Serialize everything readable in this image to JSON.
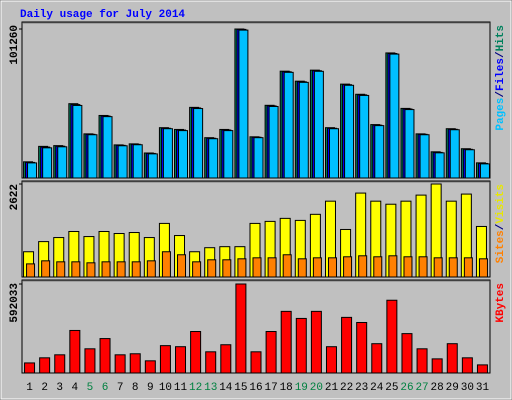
{
  "chart_data": [
    {
      "type": "bar",
      "title": "Daily usage for July 2014",
      "legend_separator": "/",
      "ylim": [
        0,
        101260
      ],
      "yticks": [
        101260
      ],
      "series": [
        {
          "name": "Hits",
          "color": "#00805c",
          "values": [
            11000,
            21500,
            22000,
            50500,
            30000,
            42500,
            22500,
            23200,
            17000,
            34200,
            33000,
            48000,
            27400,
            33000,
            101260,
            28000,
            49400,
            72600,
            65800,
            73300,
            34200,
            63800,
            56900,
            36300,
            85000,
            47300,
            30000,
            17800,
            33500,
            19900,
            10300
          ]
        },
        {
          "name": "Files",
          "color": "#0000ff",
          "values": [
            10600,
            21000,
            21600,
            49900,
            29700,
            42100,
            22200,
            22900,
            16700,
            33800,
            32600,
            47600,
            27000,
            32600,
            101000,
            27700,
            49000,
            72200,
            65400,
            72900,
            33800,
            63400,
            56500,
            35900,
            84600,
            46900,
            29700,
            17400,
            33100,
            19500,
            9900
          ]
        },
        {
          "name": "Pages",
          "color": "#00c0ff",
          "values": [
            10260,
            20500,
            21200,
            49300,
            29400,
            41700,
            21900,
            22600,
            16400,
            33500,
            32200,
            47200,
            26700,
            32200,
            100500,
            27400,
            48600,
            71800,
            65000,
            72500,
            33500,
            63000,
            56100,
            35600,
            84200,
            46500,
            29400,
            17100,
            32800,
            19200,
            9600
          ]
        }
      ]
    },
    {
      "type": "bar",
      "legend_separator": "/",
      "ylim": [
        0,
        2622
      ],
      "yticks": [
        2622
      ],
      "series": [
        {
          "name": "Visits",
          "color": "#ffff00",
          "values": [
            712,
            998,
            1112,
            1283,
            1140,
            1283,
            1226,
            1254,
            1112,
            1511,
            1169,
            712,
            826,
            855,
            855,
            1511,
            1568,
            1653,
            1596,
            1767,
            2138,
            1340,
            2366,
            2138,
            2052,
            2138,
            2309,
            2622,
            2138,
            2338,
            1425
          ]
        },
        {
          "name": "Sites",
          "color": "#ff8000",
          "values": [
            370,
            456,
            428,
            428,
            400,
            428,
            428,
            428,
            456,
            712,
            627,
            428,
            485,
            485,
            513,
            541,
            541,
            627,
            513,
            541,
            541,
            570,
            598,
            570,
            598,
            570,
            570,
            541,
            541,
            541,
            513
          ]
        }
      ]
    },
    {
      "type": "bar",
      "ylim": [
        0,
        592033
      ],
      "yticks": [
        592033
      ],
      "categories": [
        "1",
        "2",
        "3",
        "4",
        "5",
        "6",
        "7",
        "8",
        "9",
        "10",
        "11",
        "12",
        "13",
        "14",
        "15",
        "16",
        "17",
        "18",
        "19",
        "20",
        "21",
        "22",
        "23",
        "24",
        "25",
        "26",
        "27",
        "28",
        "29",
        "30",
        "31"
      ],
      "category_colors": [
        "#000000",
        "#000000",
        "#000000",
        "#000000",
        "#008040",
        "#008040",
        "#000000",
        "#000000",
        "#000000",
        "#000000",
        "#000000",
        "#008040",
        "#008040",
        "#000000",
        "#000000",
        "#000000",
        "#000000",
        "#000000",
        "#008040",
        "#008040",
        "#000000",
        "#000000",
        "#000000",
        "#000000",
        "#000000",
        "#008040",
        "#008040",
        "#000000",
        "#000000",
        "#000000",
        "#000000"
      ],
      "series": [
        {
          "name": "KBytes",
          "color": "#ff0000",
          "values": [
            67000,
            101000,
            121000,
            283000,
            161000,
            229000,
            121000,
            128000,
            81000,
            182000,
            175000,
            276000,
            141000,
            188000,
            592033,
            141000,
            276000,
            410000,
            363000,
            410000,
            175000,
            370000,
            336000,
            195000,
            484000,
            262000,
            161000,
            94000,
            195000,
            101000,
            54000
          ]
        }
      ]
    }
  ]
}
